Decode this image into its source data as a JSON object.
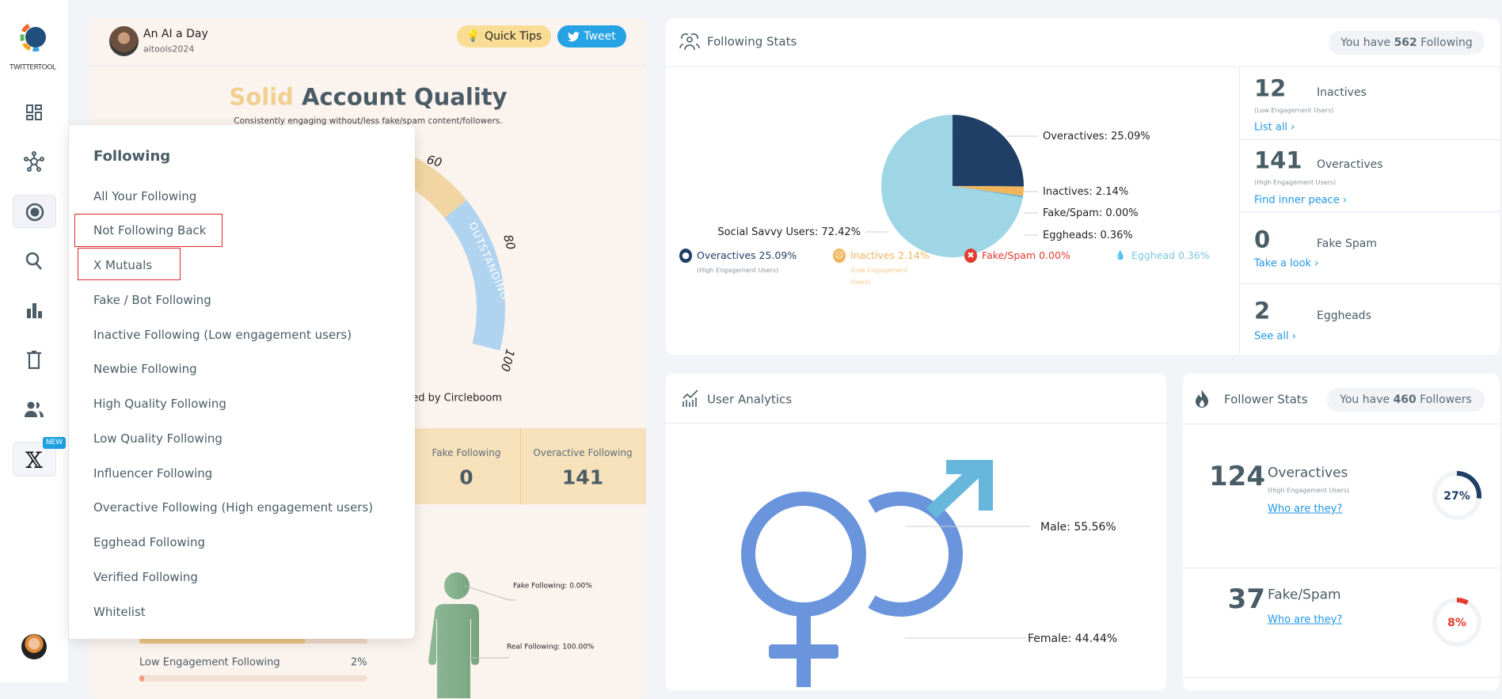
{
  "sidebar": {
    "brand": "TWITTERTOOL",
    "new_badge": "NEW",
    "items": [
      "dashboard-icon",
      "network-icon",
      "radar-icon",
      "search-icon",
      "chart-icon",
      "trash-icon",
      "users-icon",
      "x-icon"
    ]
  },
  "dropdown": {
    "title": "Following",
    "items": [
      "All Your Following",
      "Not Following Back",
      "X Mutuals",
      "Fake / Bot Following",
      "Inactive Following (Low engagement users)",
      "Newbie Following",
      "High Quality Following",
      "Low Quality Following",
      "Influencer Following",
      "Overactive Following (High engagement users)",
      "Egghead Following",
      "Verified Following",
      "Whitelist"
    ],
    "highlighted": [
      "Not Following Back",
      "X Mutuals"
    ]
  },
  "account": {
    "name": "An AI a Day",
    "handle": "aitools2024",
    "quick_tips": "Quick Tips",
    "tweet": "Tweet",
    "quality_word": "Solid",
    "quality_rest": "Account Quality",
    "subtitle": "Consistently engaging without/less fake/spam content/followers.",
    "gauge_labels": [
      "60",
      "80",
      "100"
    ],
    "gauge_band": "OUTSTANDING",
    "powered": "Powered by Circleboom",
    "stats": [
      {
        "label": "Fake Following",
        "value": "0"
      },
      {
        "label": "Overactive Following",
        "value": "141"
      }
    ],
    "figure_labels": {
      "fake": "Fake Following: 0.00%",
      "real": "Real Following: 100.00%"
    },
    "bars": [
      {
        "label": "",
        "value": "",
        "percent": 73
      },
      {
        "label": "Low Engagement Following",
        "value": "2%",
        "percent": 2
      }
    ]
  },
  "following_stats": {
    "title": "Following Stats",
    "pill_pre": "You have ",
    "pill_num": "562",
    "pill_post": " Following",
    "rows": [
      {
        "num": "12",
        "label": "Inactives",
        "sub": "(Low Engagement Users)",
        "link": "List all ›"
      },
      {
        "num": "141",
        "label": "Overactives",
        "sub": "(High Engagement Users)",
        "link": "Find inner peace ›"
      },
      {
        "num": "0",
        "label": "Fake Spam",
        "sub": "",
        "link": "Take a look ›"
      },
      {
        "num": "2",
        "label": "Eggheads",
        "sub": "",
        "link": "See all ›"
      }
    ],
    "legend": [
      {
        "label": "Overactives 25.09%",
        "sub": "(High Engagement Users)",
        "color": "#1f3f66"
      },
      {
        "label": "Inactives 2.14%",
        "sub": "(Low Engagement Users)",
        "color": "#f0b55a"
      },
      {
        "label": "Fake/Spam 0.00%",
        "sub": "",
        "color": "#e53a2e"
      },
      {
        "label": "Egghead 0.36%",
        "sub": "",
        "color": "#7cc6de"
      }
    ]
  },
  "chart_data": [
    {
      "type": "pie",
      "series": [
        {
          "name": "Overactives",
          "value": 25.09,
          "label": "Overactives: 25.09%",
          "color": "#1f3f66"
        },
        {
          "name": "Inactives",
          "value": 2.14,
          "label": "Inactives: 2.14%",
          "color": "#f0b55a"
        },
        {
          "name": "Fake/Spam",
          "value": 0.0,
          "label": "Fake/Spam: 0.00%",
          "color": "#e53a2e"
        },
        {
          "name": "Eggheads",
          "value": 0.36,
          "label": "Eggheads: 0.36%",
          "color": "#5fb2d4"
        },
        {
          "name": "Social Savvy Users",
          "value": 72.42,
          "label": "Social Savvy Users: 72.42%",
          "color": "#9fd6e6"
        }
      ]
    },
    {
      "type": "pie",
      "series": [
        {
          "name": "Male",
          "value": 55.56,
          "label": "Male: 55.56%",
          "color": "#67b7dc"
        },
        {
          "name": "Female",
          "value": 44.44,
          "label": "Female: 44.44%",
          "color": "#6a94dc"
        }
      ]
    }
  ],
  "user_analytics": {
    "title": "User Analytics"
  },
  "follower_stats": {
    "title": "Follower Stats",
    "pill_pre": "You have ",
    "pill_num": "460",
    "pill_post": " Followers",
    "rows": [
      {
        "num": "124",
        "label": "Overactives",
        "sub": "(High Engagement Users)",
        "link": "Who are they?",
        "percent": 27,
        "pct_label": "27%",
        "color": "#1f3f66"
      },
      {
        "num": "37",
        "label": "Fake/Spam",
        "sub": "",
        "link": "Who are they?",
        "percent": 8,
        "pct_label": "8%",
        "color": "#e53a2e"
      }
    ]
  }
}
